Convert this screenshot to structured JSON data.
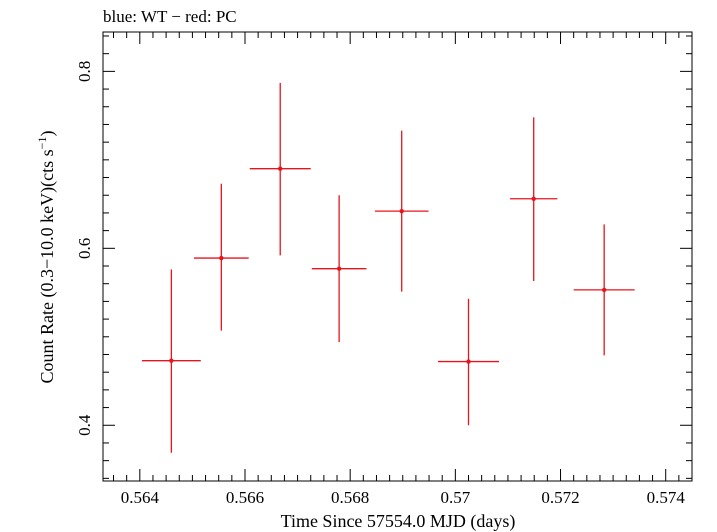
{
  "header": {
    "label": "blue: WT − red: PC"
  },
  "chart_data": {
    "type": "scatter",
    "title": "blue: WT − red: PC",
    "xlabel": "Time Since 57554.0 MJD (days)",
    "ylabel_main": "Count Rate (0.3−10.0 keV)(cts s",
    "ylabel_sup": "−1",
    "ylabel_tail": ")",
    "xlim": [
      0.5633,
      0.5745
    ],
    "ylim": [
      0.337,
      0.8445
    ],
    "xticks": [
      0.564,
      0.566,
      0.568,
      0.57,
      0.572,
      0.574
    ],
    "xtick_labels": [
      "0.564",
      "0.566",
      "0.568",
      "0.57",
      "0.572",
      "0.574"
    ],
    "yticks": [
      0.4,
      0.6,
      0.8
    ],
    "ytick_labels": [
      "0.4",
      "0.6",
      "0.8"
    ],
    "grid": false,
    "series": [
      {
        "color": "#e8141b",
        "points": [
          {
            "x": 0.5646,
            "xerr": 0.00056,
            "y": 0.473,
            "ylo": 0.369,
            "yhi": 0.576
          },
          {
            "x": 0.56555,
            "xerr": 0.00052,
            "y": 0.589,
            "ylo": 0.507,
            "yhi": 0.673
          },
          {
            "x": 0.56667,
            "xerr": 0.00058,
            "y": 0.69,
            "ylo": 0.592,
            "yhi": 0.787
          },
          {
            "x": 0.56779,
            "xerr": 0.00052,
            "y": 0.577,
            "ylo": 0.494,
            "yhi": 0.66
          },
          {
            "x": 0.56898,
            "xerr": 0.00051,
            "y": 0.642,
            "ylo": 0.551,
            "yhi": 0.733
          },
          {
            "x": 0.57025,
            "xerr": 0.00058,
            "y": 0.472,
            "ylo": 0.4,
            "yhi": 0.543
          },
          {
            "x": 0.57149,
            "xerr": 0.00045,
            "y": 0.656,
            "ylo": 0.563,
            "yhi": 0.748
          },
          {
            "x": 0.57283,
            "xerr": 0.00058,
            "y": 0.553,
            "ylo": 0.479,
            "yhi": 0.627
          }
        ]
      }
    ]
  }
}
